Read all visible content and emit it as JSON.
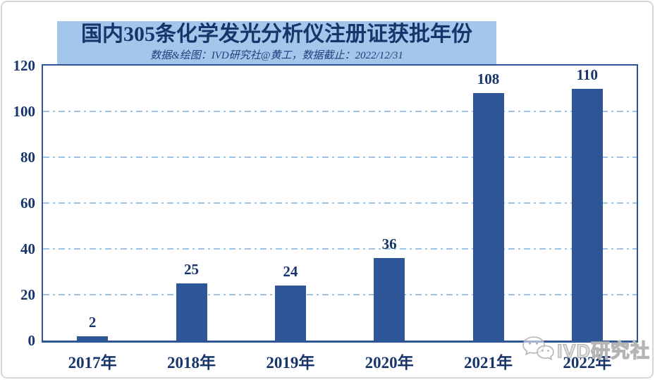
{
  "header": {
    "title": "国内305条化学发光分析仪注册证获批年份",
    "subtitle": "数据&绘图：IVD研究社@黄工，数据截止：2022/12/31"
  },
  "chart_data": {
    "type": "bar",
    "title": "国内305条化学发光分析仪注册证获批年份",
    "subtitle": "数据&绘图：IVD研究社@黄工，数据截止：2022/12/31",
    "categories": [
      "2017年",
      "2018年",
      "2019年",
      "2020年",
      "2021年",
      "2022年"
    ],
    "values": [
      2,
      25,
      24,
      36,
      108,
      110
    ],
    "total_registrations": 305,
    "xlabel": "",
    "ylabel": "",
    "ylim": [
      0,
      120
    ],
    "yticks": [
      0,
      20,
      40,
      60,
      80,
      100,
      120
    ],
    "grid_values": [
      20,
      40,
      60,
      80,
      100
    ],
    "grid_style": "horizontal dash-dot",
    "legend": "none",
    "colors": {
      "bar": "#2E5596",
      "axis_border": "#2E5596",
      "gridline": "#9DC3E6",
      "label_text": "#17356B",
      "title_text": "#17356B",
      "title_background": "#A3C6EA",
      "page_background": "#FFFFFF",
      "frame_border": "#D7D7D7",
      "watermark_gray": "#B4B4B4"
    }
  },
  "watermark": {
    "icon": "wechat-icon",
    "text": "IVD研究社"
  }
}
